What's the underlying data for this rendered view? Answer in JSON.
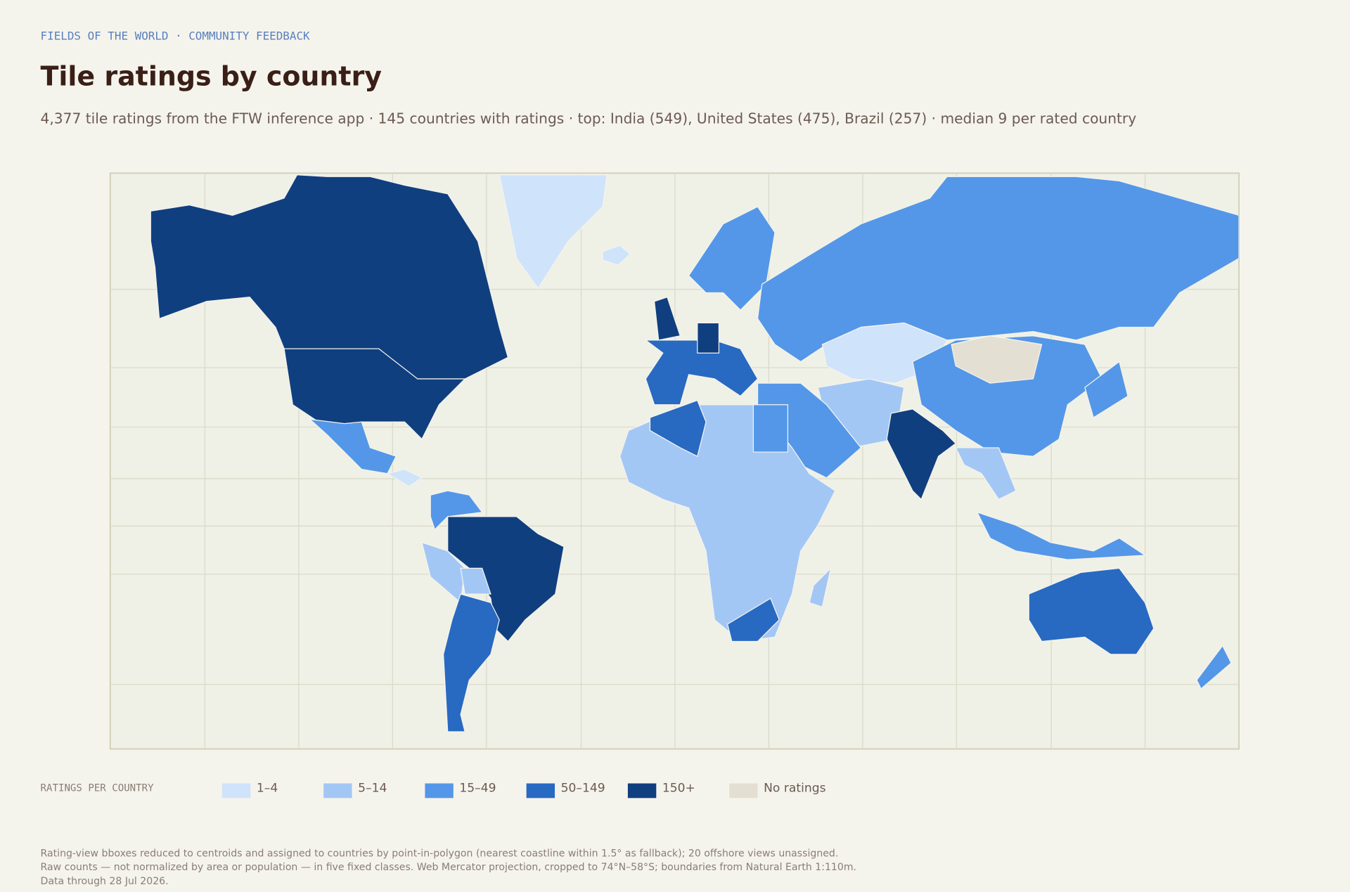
{
  "header": {
    "eyebrow": "FIELDS OF THE WORLD · COMMUNITY FEEDBACK",
    "title": "Tile ratings by country",
    "subtitle": "4,377 tile ratings from the FTW inference app · 145 countries with ratings · top: India (549), United States (475), Brazil (257) · median 9 per rated country"
  },
  "legend": {
    "title": "RATINGS PER COUNTRY",
    "classes": [
      {
        "label": "1–4",
        "color": "#cfe3fb"
      },
      {
        "label": "5–14",
        "color": "#a3c7f5"
      },
      {
        "label": "15–49",
        "color": "#5497e8"
      },
      {
        "label": "50–149",
        "color": "#2869c2"
      },
      {
        "label": "150+",
        "color": "#103f80"
      },
      {
        "label": "No ratings",
        "color": "#e4dfd3"
      }
    ]
  },
  "footer": {
    "lines": [
      "Rating-view bboxes reduced to centroids and assigned to countries by point-in-polygon (nearest coastline within 1.5° as fallback); 20 offshore views unassigned.",
      "Raw counts — not normalized by area or population — in five fixed classes. Web Mercator projection, cropped to 74°N–58°S; boundaries from Natural Earth 1:110m.",
      "Data through 28 Jul 2026."
    ]
  }
}
